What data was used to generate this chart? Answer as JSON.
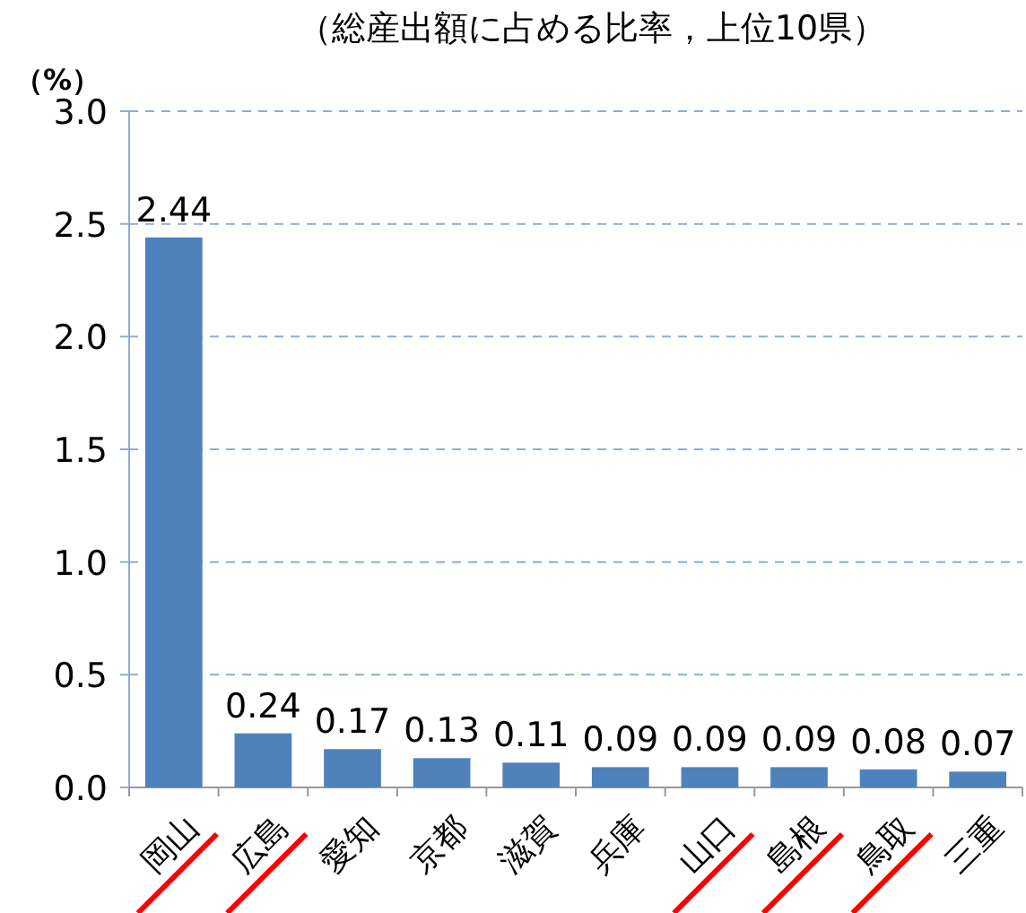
{
  "chart_data": {
    "type": "bar",
    "title": "（総産出額に占める比率，上位10県）",
    "ylabel": "（%）",
    "categories": [
      "岡山",
      "広島",
      "愛知",
      "京都",
      "滋賀",
      "兵庫",
      "山口",
      "島根",
      "鳥取",
      "三重"
    ],
    "values": [
      2.44,
      0.24,
      0.17,
      0.13,
      0.11,
      0.09,
      0.09,
      0.09,
      0.08,
      0.07
    ],
    "color": "#4f81bd",
    "ylim": [
      0,
      3
    ],
    "yticks": [
      {
        "value": 0,
        "label": "0.0"
      },
      {
        "value": 0.5,
        "label": "0.5"
      },
      {
        "value": 1,
        "label": "1.0"
      },
      {
        "value": 1.5,
        "label": "1.5"
      },
      {
        "value": 2,
        "label": "2.0"
      },
      {
        "value": 2.5,
        "label": "2.5"
      },
      {
        "value": 3,
        "label": "3.0"
      }
    ],
    "grid": "y",
    "data_labels": true
  }
}
